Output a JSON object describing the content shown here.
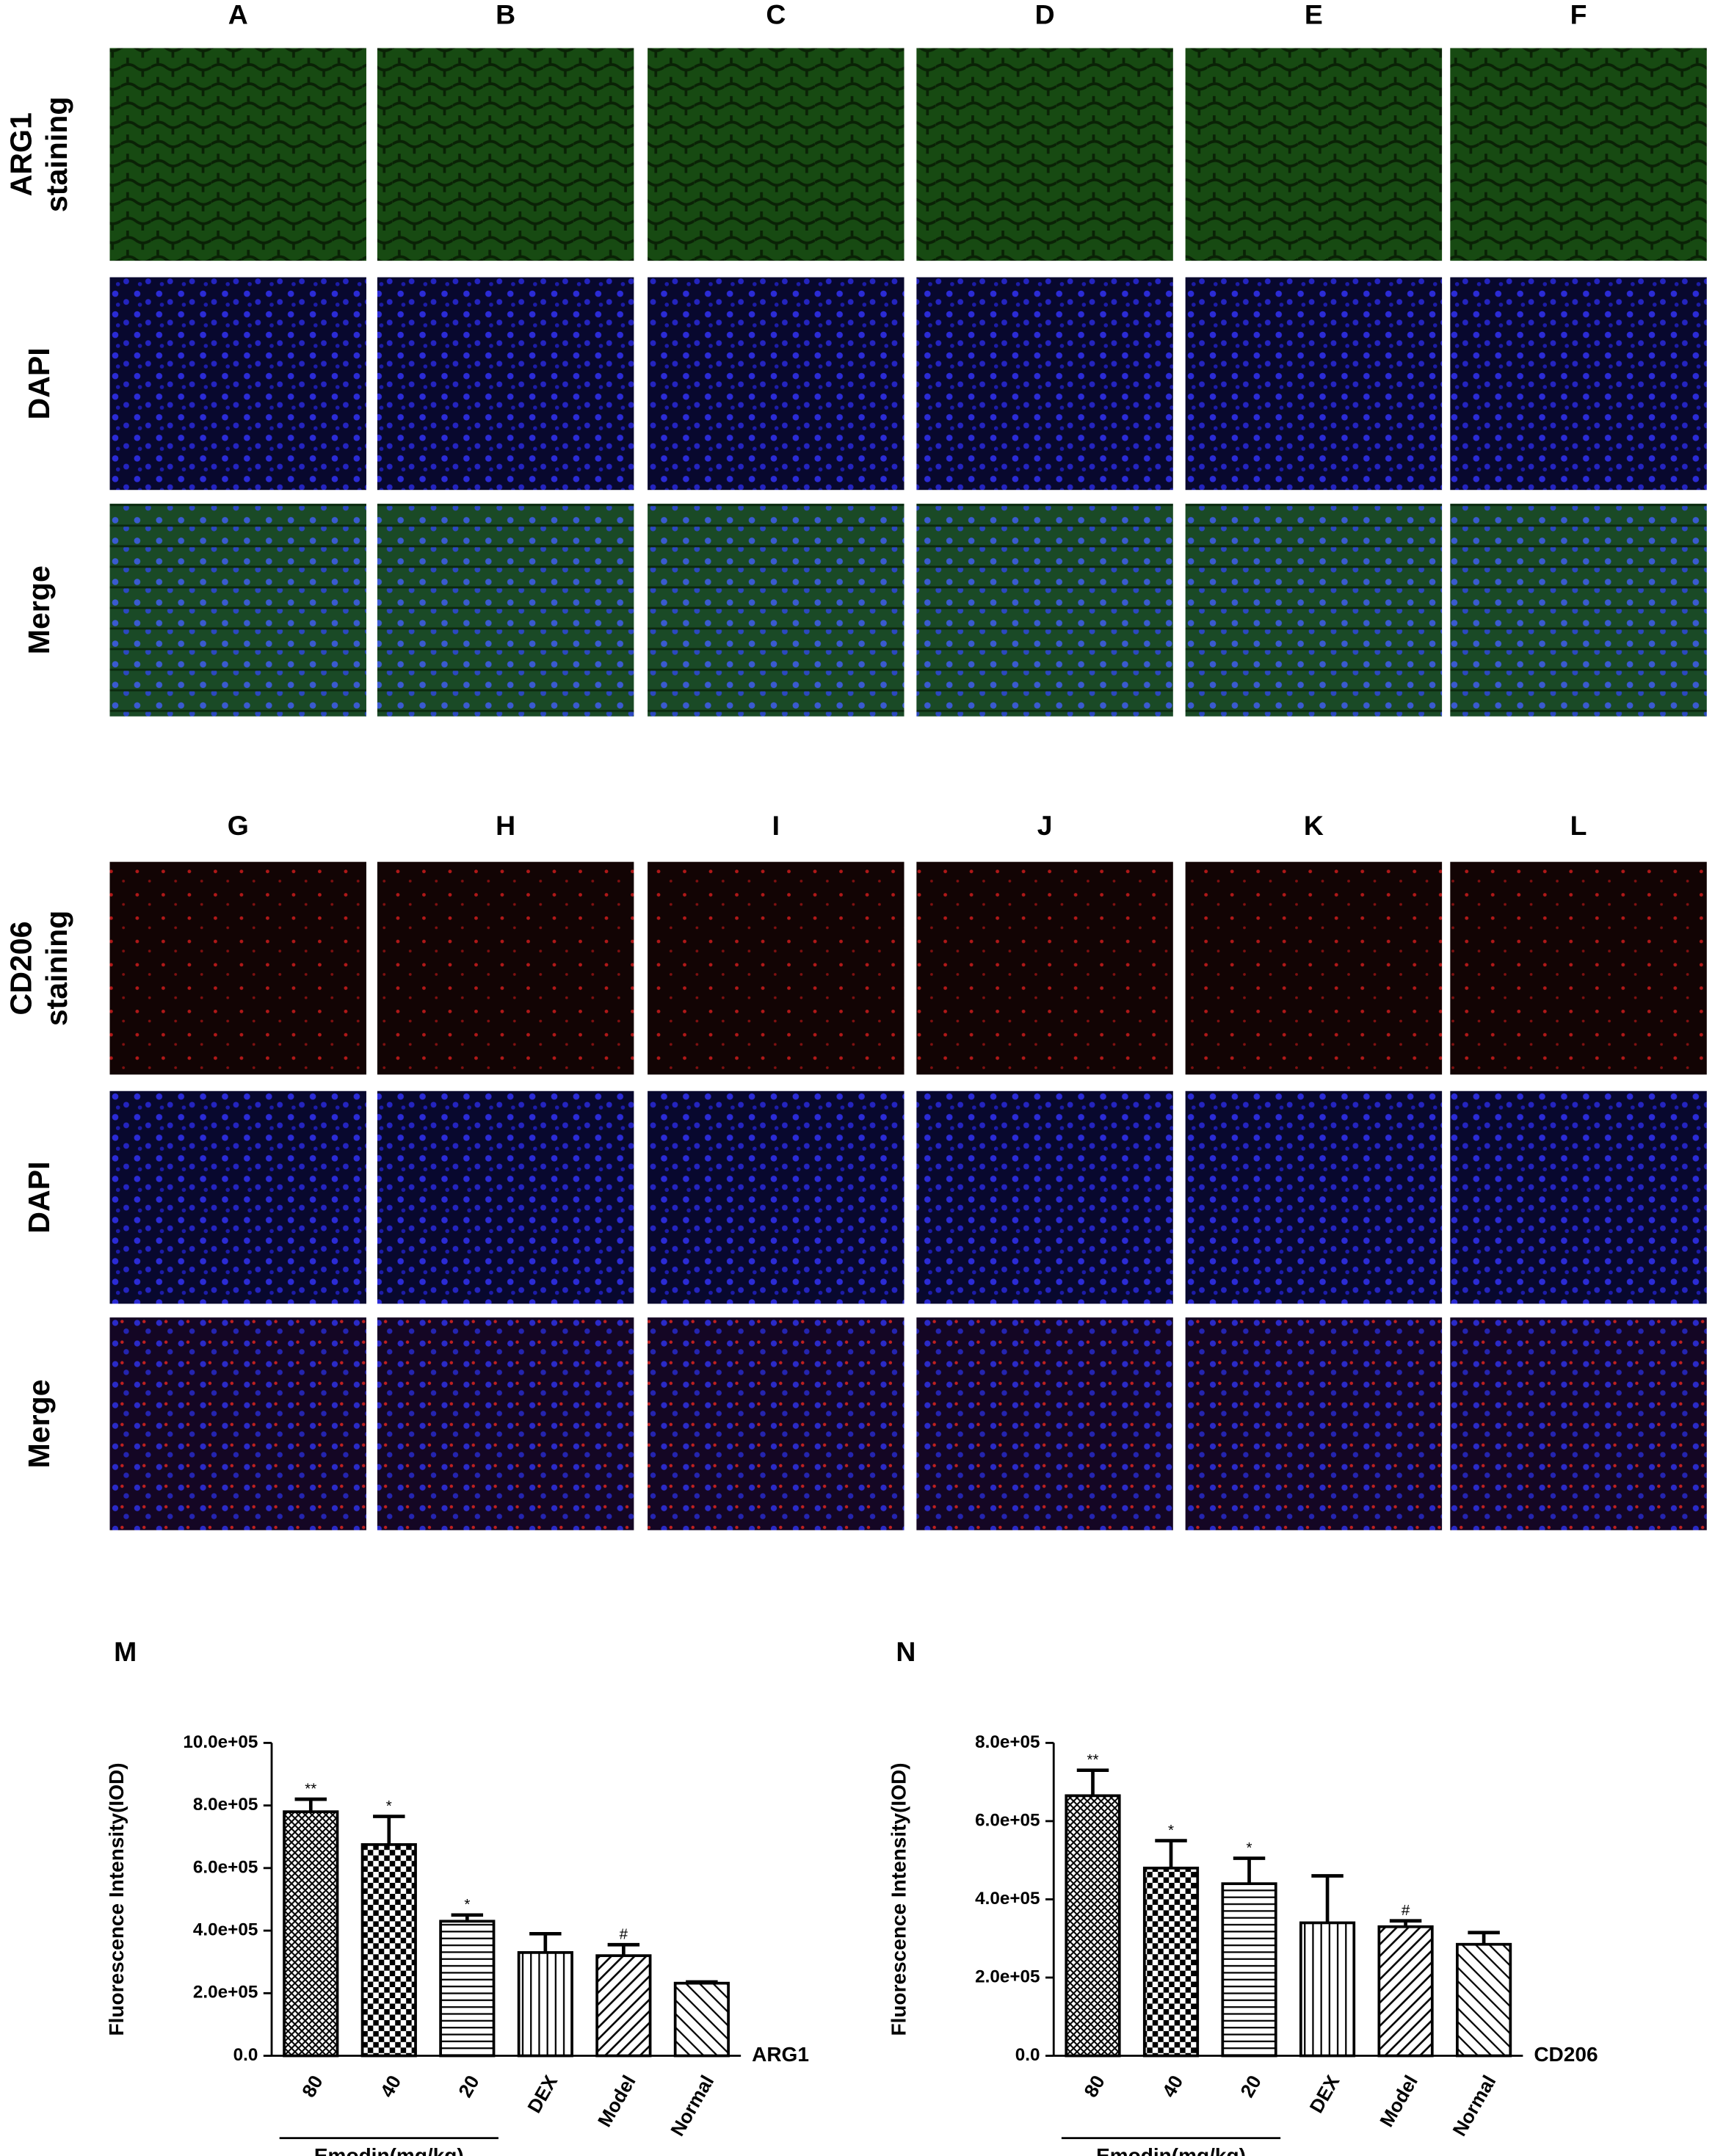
{
  "figure": {
    "columns_top": [
      "A",
      "B",
      "C",
      "D",
      "E",
      "F"
    ],
    "columns_bottom": [
      "G",
      "H",
      "I",
      "J",
      "K",
      "L"
    ],
    "rows_top": [
      [
        "ARG1",
        "staining"
      ],
      [
        "DAPI"
      ],
      [
        "Merge"
      ]
    ],
    "rows_bottom": [
      [
        "CD206",
        "staining"
      ],
      [
        "DAPI"
      ],
      [
        "Merge"
      ]
    ]
  },
  "chart_data": [
    {
      "type": "bar",
      "panel": "M",
      "ylabel": "Fluorescence Intensity(IOD)",
      "xlabel": "ARG1",
      "group_label": "Emodin(mg/kg)",
      "categories": [
        "80",
        "40",
        "20",
        "DEX",
        "Model",
        "Normal"
      ],
      "values": [
        780000,
        675000,
        430000,
        330000,
        320000,
        232000
      ],
      "errors": [
        40000,
        90000,
        20000,
        60000,
        35000,
        4000
      ],
      "annotations": [
        "**",
        "*",
        "*",
        null,
        "#",
        null
      ],
      "color": "#000000",
      "ylim": [
        0,
        1000000
      ],
      "yticks": [
        {
          "value": 0,
          "label": "0.0"
        },
        {
          "value": 200000,
          "label": "2.0e+05"
        },
        {
          "value": 400000,
          "label": "4.0e+05"
        },
        {
          "value": 600000,
          "label": "6.0e+05"
        },
        {
          "value": 800000,
          "label": "8.0e+05"
        },
        {
          "value": 1000000,
          "label": "10.0e+05"
        }
      ]
    },
    {
      "type": "bar",
      "panel": "N",
      "ylabel": "Fluorescence Intensity(IOD)",
      "xlabel": "CD206",
      "group_label": "Emodin(mg/kg)",
      "categories": [
        "80",
        "40",
        "20",
        "DEX",
        "Model",
        "Normal"
      ],
      "values": [
        665000,
        480000,
        440000,
        340000,
        330000,
        285000
      ],
      "errors": [
        65000,
        70000,
        65000,
        120000,
        15000,
        30000
      ],
      "annotations": [
        "**",
        "*",
        "*",
        null,
        "#",
        null
      ],
      "color": "#000000",
      "ylim": [
        0,
        800000
      ],
      "yticks": [
        {
          "value": 0,
          "label": "0.0"
        },
        {
          "value": 200000,
          "label": "2.0e+05"
        },
        {
          "value": 400000,
          "label": "4.0e+05"
        },
        {
          "value": 600000,
          "label": "6.0e+05"
        },
        {
          "value": 800000,
          "label": "8.0e+05"
        }
      ]
    }
  ]
}
